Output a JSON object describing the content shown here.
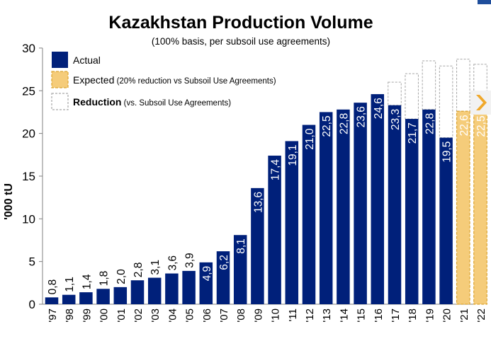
{
  "title": "Kazakhstan Production Volume",
  "subtitle": "(100% basis, per subsoil use agreements)",
  "colors": {
    "actual": "#00207a",
    "expected_fill": "#f5cc7a",
    "expected_stroke": "#dba430",
    "reduction_stroke": "#a6a6a6",
    "accent": "#f0a82a",
    "brand": "#1f4e9c"
  },
  "chart_data": {
    "type": "bar",
    "title": "Kazakhstan Production Volume",
    "subtitle": "(100% basis, per subsoil use agreements)",
    "ylabel": "'000 tU",
    "xlabel": "",
    "ylim": [
      0,
      30
    ],
    "yticks": [
      "0",
      "5",
      "10",
      "15",
      "20",
      "25",
      "30"
    ],
    "categories": [
      "'97",
      "'98",
      "'99",
      "'00",
      "'01",
      "'02",
      "'03",
      "'04",
      "'05",
      "'06",
      "'07",
      "'08",
      "'09",
      "'10",
      "'11",
      "'12",
      "'13",
      "'14",
      "'15",
      "'16",
      "'17",
      "'18",
      "'19",
      "'20",
      "'21",
      "'22"
    ],
    "series": [
      {
        "name": "Actual",
        "values": [
          0.8,
          1.1,
          1.4,
          1.8,
          2.0,
          2.8,
          3.1,
          3.6,
          3.9,
          4.9,
          6.2,
          8.1,
          13.6,
          17.4,
          19.1,
          21.0,
          22.5,
          22.8,
          23.6,
          24.6,
          23.3,
          21.7,
          22.8,
          19.5,
          null,
          null
        ],
        "labels": [
          "0,8",
          "1,1",
          "1,4",
          "1,8",
          "2,0",
          "2,8",
          "3,1",
          "3,6",
          "3,9",
          "4,9",
          "6,2",
          "8,1",
          "13,6",
          "17,4",
          "19,1",
          "21,0",
          "22,5",
          "22,8",
          "23,6",
          "24,6",
          "23,3",
          "21,7",
          "22,8",
          "19,5",
          "",
          ""
        ]
      },
      {
        "name": "Expected",
        "note": "(20% reduction vs Subsoil Use Agreements)",
        "values": [
          null,
          null,
          null,
          null,
          null,
          null,
          null,
          null,
          null,
          null,
          null,
          null,
          null,
          null,
          null,
          null,
          null,
          null,
          null,
          null,
          null,
          null,
          null,
          null,
          22.6,
          22.5
        ],
        "labels": [
          "",
          "",
          "",
          "",
          "",
          "",
          "",
          "",
          "",
          "",
          "",
          "",
          "",
          "",
          "",
          "",
          "",
          "",
          "",
          "",
          "",
          "",
          "",
          "",
          "22,6",
          "22,5"
        ]
      },
      {
        "name": "Reduction",
        "note": "(vs. Subsoil Use Agreements)",
        "totals": [
          null,
          null,
          null,
          null,
          null,
          null,
          null,
          null,
          null,
          null,
          null,
          null,
          null,
          null,
          null,
          null,
          null,
          null,
          null,
          null,
          26.0,
          27.0,
          28.5,
          27.9,
          28.7,
          28.1
        ]
      }
    ],
    "legend": {
      "position": "top-left",
      "entries": [
        {
          "label": "Actual",
          "note": ""
        },
        {
          "label": "Expected",
          "note": "(20% reduction vs Subsoil Use Agreements)"
        },
        {
          "label": "Reduction",
          "note": "(vs. Subsoil Use Agreements)"
        }
      ]
    },
    "grid": false
  }
}
